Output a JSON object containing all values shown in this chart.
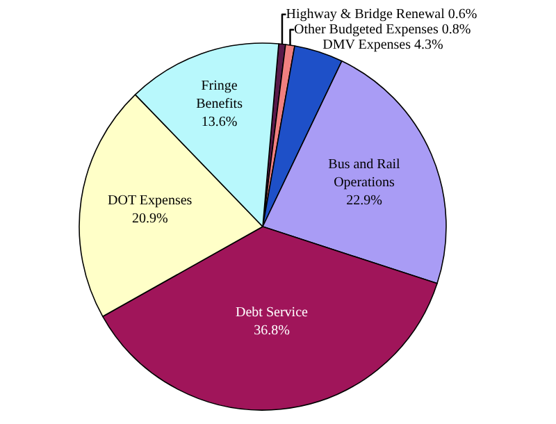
{
  "chart_data": {
    "type": "pie",
    "categories": [
      "Highway & Bridge Renewal",
      "Other Budgeted Expenses",
      "DMV Expenses",
      "Bus and Rail Operations",
      "Debt Service",
      "DOT Expenses",
      "Fringe Benefits"
    ],
    "values": [
      0.6,
      0.8,
      4.3,
      22.9,
      36.8,
      20.9,
      13.6
    ],
    "colors": [
      "#5a1a4a",
      "#f08080",
      "#1e50c8",
      "#a99cf5",
      "#a0155a",
      "#ffffc8",
      "#b8f8fc"
    ],
    "value_labels": [
      "0.6%",
      "0.8%",
      "4.3%",
      "22.9%",
      "36.8%",
      "20.9%",
      "13.6%"
    ],
    "legend": false
  }
}
